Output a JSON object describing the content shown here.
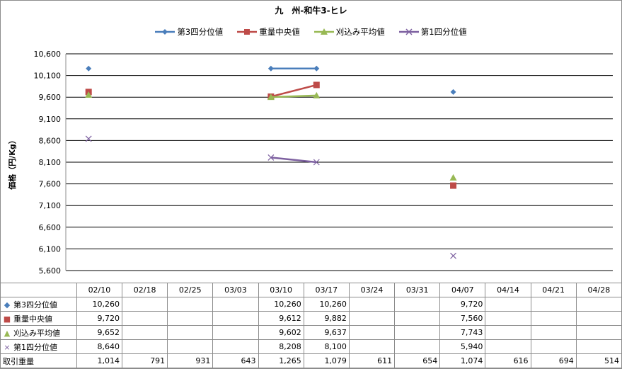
{
  "chart_data": {
    "type": "line",
    "title": "九　州-和牛3-ヒレ",
    "ylabel": "価格（円/Kg）",
    "ylim": [
      5600,
      10600
    ],
    "yticks": [
      "10,600",
      "10,100",
      "9,600",
      "9,100",
      "8,600",
      "8,100",
      "7,600",
      "7,100",
      "6,600",
      "6,100",
      "5,600"
    ],
    "categories": [
      "02/10",
      "02/18",
      "02/25",
      "03/03",
      "03/10",
      "03/17",
      "03/24",
      "03/31",
      "04/07",
      "04/14",
      "04/21",
      "04/28"
    ],
    "series": [
      {
        "name": "第3四分位値",
        "color": "#4a7ebb",
        "marker": "diamond",
        "values": [
          10260,
          null,
          null,
          null,
          10260,
          10260,
          null,
          null,
          9720,
          null,
          null,
          null
        ],
        "labels": [
          "10,260",
          "",
          "",
          "",
          "10,260",
          "10,260",
          "",
          "",
          "9,720",
          "",
          "",
          ""
        ]
      },
      {
        "name": "重量中央値",
        "color": "#be4b48",
        "marker": "square",
        "values": [
          9720,
          null,
          null,
          null,
          9612,
          9882,
          null,
          null,
          7560,
          null,
          null,
          null
        ],
        "labels": [
          "9,720",
          "",
          "",
          "",
          "9,612",
          "9,882",
          "",
          "",
          "7,560",
          "",
          "",
          ""
        ]
      },
      {
        "name": "刈込み平均値",
        "color": "#98b954",
        "marker": "triangle",
        "values": [
          9652,
          null,
          null,
          null,
          9602,
          9637,
          null,
          null,
          7743,
          null,
          null,
          null
        ],
        "labels": [
          "9,652",
          "",
          "",
          "",
          "9,602",
          "9,637",
          "",
          "",
          "7,743",
          "",
          "",
          ""
        ]
      },
      {
        "name": "第1四分位値",
        "color": "#7d60a0",
        "marker": "x",
        "values": [
          8640,
          null,
          null,
          null,
          8208,
          8100,
          null,
          null,
          5940,
          null,
          null,
          null
        ],
        "labels": [
          "8,640",
          "",
          "",
          "",
          "8,208",
          "8,100",
          "",
          "",
          "5,940",
          "",
          "",
          ""
        ]
      }
    ],
    "volume": {
      "name": "取引重量",
      "values": [
        1014,
        791,
        931,
        643,
        1265,
        1079,
        611,
        654,
        1074,
        616,
        694,
        514
      ],
      "labels": [
        "1,014",
        "791",
        "931",
        "643",
        "1,265",
        "1,079",
        "611",
        "654",
        "1,074",
        "616",
        "694",
        "514"
      ]
    },
    "grid": true,
    "legend": "top"
  }
}
